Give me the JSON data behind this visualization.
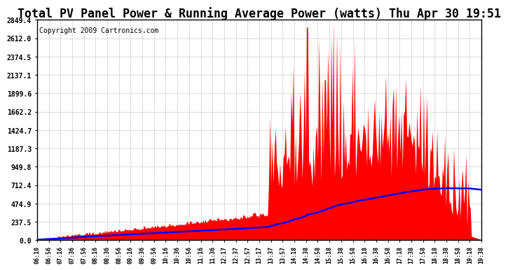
{
  "title": "Total PV Panel Power & Running Average Power (watts) Thu Apr 30 19:51",
  "copyright": "Copyright 2009 Cartronics.com",
  "y_ticks": [
    0.0,
    237.5,
    474.9,
    712.4,
    949.8,
    1187.3,
    1424.7,
    1662.2,
    1899.6,
    2137.1,
    2374.5,
    2612.0,
    2849.4
  ],
  "y_max": 2849.4,
  "bg_color": "#ffffff",
  "grid_color": "#aaaaaa",
  "bar_color": "#ff0000",
  "line_color": "#0000ff",
  "title_fontsize": 12,
  "copyright_fontsize": 7,
  "x_tick_labels": [
    "06:10",
    "06:56",
    "07:16",
    "07:36",
    "07:56",
    "08:16",
    "08:36",
    "08:56",
    "09:16",
    "09:36",
    "09:56",
    "10:16",
    "10:36",
    "10:56",
    "11:16",
    "11:36",
    "12:17",
    "12:37",
    "12:57",
    "13:17",
    "13:37",
    "13:57",
    "14:18",
    "14:38",
    "14:58",
    "15:18",
    "15:38",
    "15:58",
    "16:18",
    "16:38",
    "16:58",
    "17:18",
    "17:38",
    "17:58",
    "18:18",
    "18:38",
    "18:58",
    "19:18",
    "19:38"
  ]
}
